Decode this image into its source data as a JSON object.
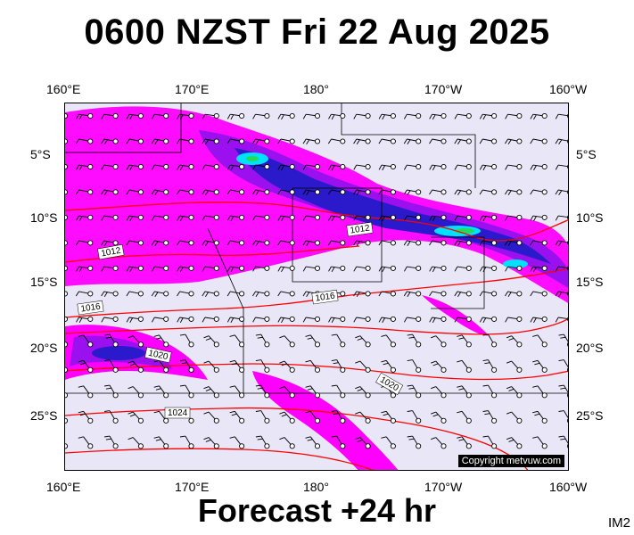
{
  "title": "0600 NZST Fri 22 Aug 2025",
  "footer": "Forecast +24 hr",
  "corner_label": "IM2",
  "copyright": "Copyright metvuw.com",
  "axes": {
    "top": [
      "160°E",
      "170°E",
      "180°",
      "170°W",
      "160°W"
    ],
    "bottom": [
      "160°E",
      "170°E",
      "180°",
      "170°W",
      "160°W"
    ],
    "left": [
      "5°S",
      "10°S",
      "15°S",
      "20°S",
      "25°S"
    ],
    "right": [
      "5°S",
      "10°S",
      "15°S",
      "20°S",
      "25°S"
    ]
  },
  "isobar_labels": [
    "1012",
    "1012",
    "1016",
    "1016",
    "1020",
    "1020",
    "1024"
  ],
  "colors": {
    "background": "#e8e6f7",
    "magenta": "#ff00ff",
    "purple": "#9b10ee",
    "blue": "#2a1acc",
    "cyan": "#00e0ff",
    "green": "#22dd55",
    "isobar": "#ff0000"
  }
}
